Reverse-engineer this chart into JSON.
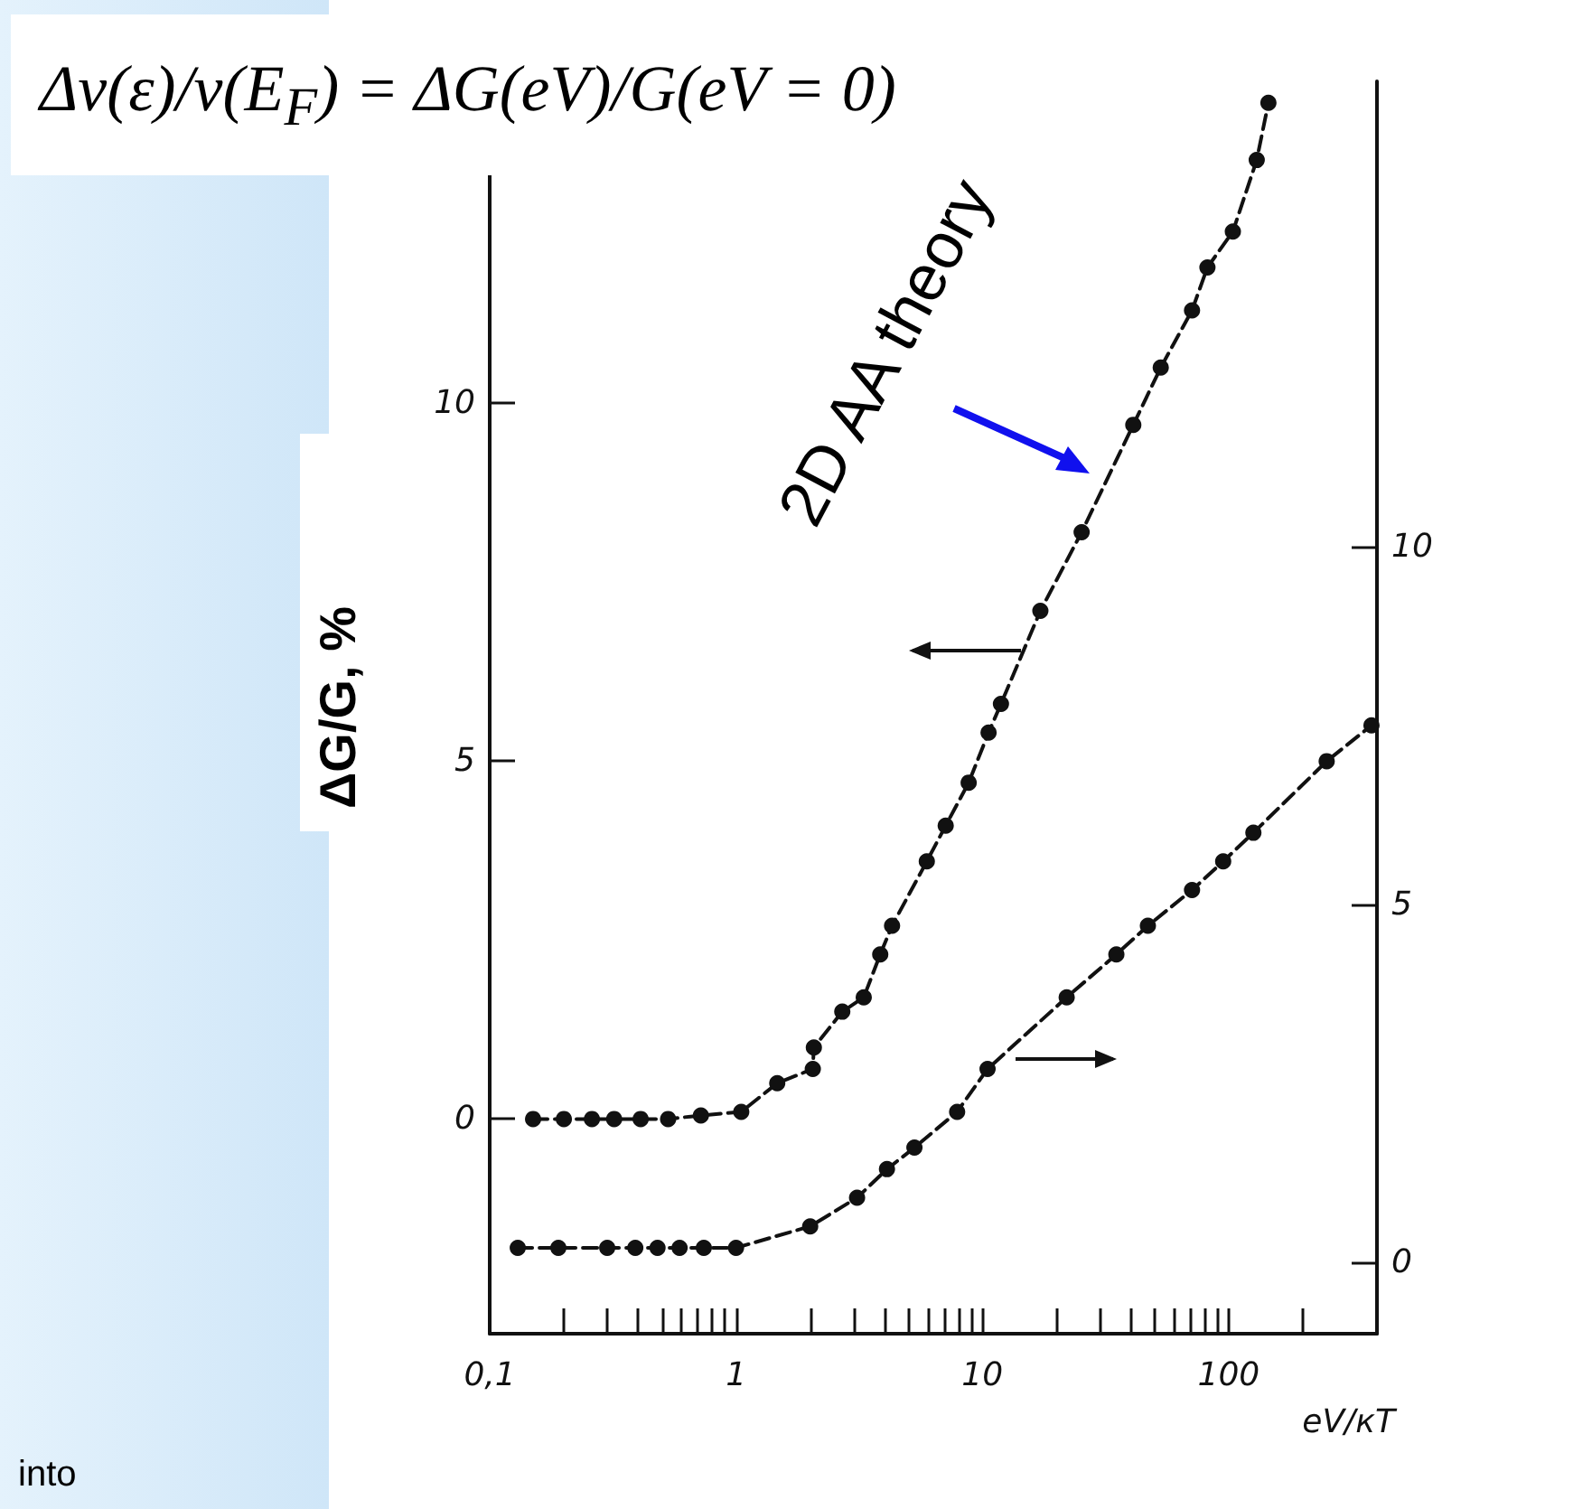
{
  "chart_data": {
    "type": "line",
    "xlabel": "eV/кT",
    "ylabel": "ΔG/G, %",
    "annotations": [
      "Δν(ε)/ν(E$_{F}$) = ΔG(eV)/G(eV = 0)",
      "2D AA theory",
      "into"
    ],
    "log": "x",
    "grid": false,
    "marker": "circle",
    "line_style": "dashed",
    "xlim": [
      0.1,
      400
    ],
    "xticks": [
      {
        "value": 0.1,
        "label": "0,1"
      },
      {
        "value": 0.2,
        "label": null
      },
      {
        "value": 0.3,
        "label": null
      },
      {
        "value": 0.4,
        "label": null
      },
      {
        "value": 0.5,
        "label": null
      },
      {
        "value": 0.6,
        "label": null
      },
      {
        "value": 0.7,
        "label": null
      },
      {
        "value": 0.8,
        "label": null
      },
      {
        "value": 0.9,
        "label": null
      },
      1,
      {
        "value": 2,
        "label": null
      },
      {
        "value": 3,
        "label": null
      },
      {
        "value": 4,
        "label": null
      },
      {
        "value": 5,
        "label": null
      },
      {
        "value": 6,
        "label": null
      },
      {
        "value": 7,
        "label": null
      },
      {
        "value": 8,
        "label": null
      },
      {
        "value": 9,
        "label": null
      },
      10,
      {
        "value": 20,
        "label": null
      },
      {
        "value": 30,
        "label": null
      },
      {
        "value": 40,
        "label": null
      },
      {
        "value": 50,
        "label": null
      },
      {
        "value": 60,
        "label": null
      },
      {
        "value": 70,
        "label": null
      },
      {
        "value": 80,
        "label": null
      },
      {
        "value": 90,
        "label": null
      },
      100,
      {
        "value": 200,
        "label": null
      }
    ],
    "ylim": [
      -3,
      14.5
    ],
    "yticks": [
      0,
      5,
      10
    ],
    "y2lim": [
      -1,
      16.5
    ],
    "y2ticks": [
      0,
      5,
      10
    ],
    "series": [
      {
        "color": "#111111",
        "x": [
          0.15,
          0.2,
          0.26,
          0.32,
          0.41,
          0.53,
          0.72,
          1.05,
          1.47,
          2.05,
          2.07,
          2.7,
          3.3,
          3.85,
          4.3,
          5.95,
          7.1,
          8.8,
          10.6,
          11.9,
          17.2,
          25.3,
          41,
          53,
          71,
          82,
          104,
          130,
          145
        ],
        "values": [
          0,
          0,
          0,
          0,
          0,
          0,
          0.05,
          0.1,
          0.5,
          0.7,
          1.0,
          1.5,
          1.7,
          2.3,
          2.7,
          3.6,
          4.1,
          4.7,
          5.4,
          5.8,
          7.1,
          8.2,
          9.7,
          10.5,
          11.3,
          11.9,
          12.4,
          13.4,
          14.2
        ]
      },
      {
        "color": "#111111",
        "axis": "y2",
        "x": [
          0.13,
          0.19,
          0.3,
          0.39,
          0.48,
          0.59,
          0.74,
          1.0,
          2.0,
          3.1,
          4.1,
          5.3,
          7.9,
          10.5,
          22,
          35,
          47,
          71,
          95,
          126,
          250,
          380
        ],
        "values": [
          0.2,
          0.2,
          0.2,
          0.2,
          0.2,
          0.2,
          0.2,
          0.2,
          0.5,
          0.9,
          1.3,
          1.6,
          2.1,
          2.7,
          3.7,
          4.3,
          4.7,
          5.2,
          5.6,
          6.0,
          7.0,
          7.5
        ]
      }
    ]
  }
}
